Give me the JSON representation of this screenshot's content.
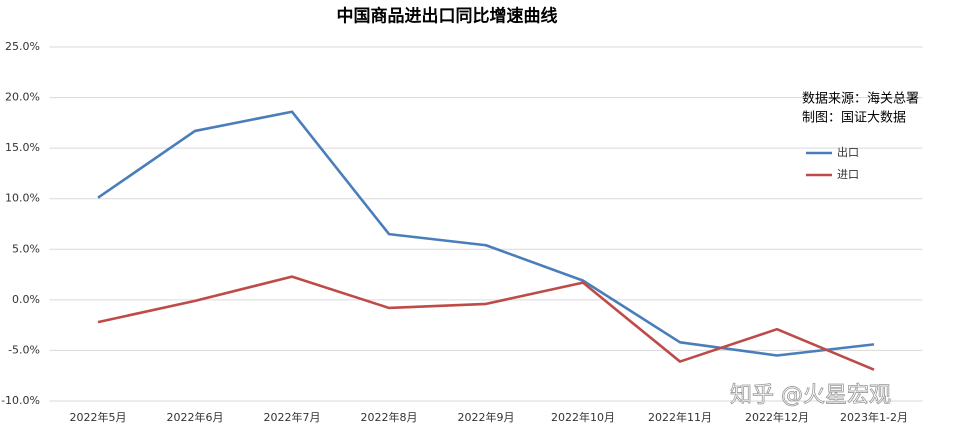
{
  "chart_data": {
    "type": "line",
    "title": "中国商品进出口同比增速曲线",
    "categories": [
      "2022年5月",
      "2022年6月",
      "2022年7月",
      "2022年8月",
      "2022年9月",
      "2022年10月",
      "2022年11月",
      "2022年12月",
      "2023年1-2月"
    ],
    "series": [
      {
        "name": "出口",
        "color": "#4a7ebb",
        "values": [
          10.1,
          16.7,
          18.6,
          6.5,
          5.4,
          1.9,
          -4.2,
          -5.5,
          -4.4
        ]
      },
      {
        "name": "进口",
        "color": "#be4b48",
        "values": [
          -2.2,
          -0.1,
          2.3,
          -0.8,
          -0.4,
          1.7,
          -6.1,
          -2.9,
          -6.9
        ]
      }
    ],
    "ylim": [
      -10,
      25
    ],
    "yticks": [
      {
        "value": -10,
        "label": "-10.0%"
      },
      {
        "value": -5,
        "label": "-5.0%"
      },
      {
        "value": 0,
        "label": "0.0%"
      },
      {
        "value": 5,
        "label": "5.0%"
      },
      {
        "value": 10,
        "label": "10.0%"
      },
      {
        "value": 15,
        "label": "15.0%"
      },
      {
        "value": 20,
        "label": "20.0%"
      },
      {
        "value": 25,
        "label": "25.0%"
      }
    ],
    "grid": true,
    "annotations": [
      "数据来源：海关总署",
      "制图：国证大数据",
      "知乎 @火星宏观"
    ]
  }
}
